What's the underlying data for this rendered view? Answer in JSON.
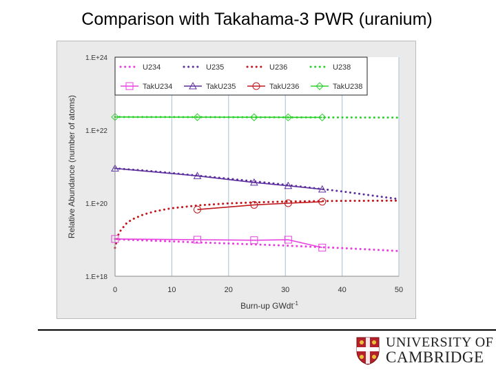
{
  "slide": {
    "title": "Comparison with Takahama-3 PWR (uranium)"
  },
  "logo": {
    "line1": "UNIVERSITY OF",
    "line2": "CAMBRIDGE",
    "shield_color": "#b5212a"
  },
  "chart_data": {
    "type": "line",
    "xlabel": "Burn-up GWdt",
    "xlabel_sup": "-1",
    "ylabel": "Relative Abundance   (number of atoms)",
    "xlim": [
      0,
      50
    ],
    "xticks": [
      0,
      10,
      20,
      30,
      40,
      50
    ],
    "y_scale": "log",
    "ylim": [
      1e+18,
      1e+24
    ],
    "yticks": [
      {
        "value": 1e+18,
        "label": "1.E+18"
      },
      {
        "value": 1e+20,
        "label": "1.E+20"
      },
      {
        "value": 1e+22,
        "label": "1.E+22"
      },
      {
        "value": 1e+24,
        "label": "1.E+24"
      }
    ],
    "grid": "vertical",
    "legend_position": "top-right",
    "series": [
      {
        "name": "U234",
        "style": "dotted",
        "color": "#e83ee0",
        "x": [
          0,
          2,
          5,
          10,
          15,
          20,
          25,
          30,
          35,
          40,
          45,
          50
        ],
        "y": [
          1.05e+19,
          1e+19,
          9.6e+18,
          9e+18,
          8.4e+18,
          7.9e+18,
          7.4e+18,
          6.9e+18,
          6.4e+18,
          5.9e+18,
          5.4e+18,
          4.9e+18
        ]
      },
      {
        "name": "U235",
        "style": "dotted",
        "color": "#5b2d9e",
        "x": [
          0,
          5,
          10,
          15,
          20,
          25,
          30,
          35,
          40,
          45,
          50
        ],
        "y": [
          9e+20,
          7.9e+20,
          6.7e+20,
          5.6e+20,
          4.7e+20,
          3.9e+20,
          3.2e+20,
          2.6e+20,
          2.1e+20,
          1.65e+20,
          1.3e+20
        ]
      },
      {
        "name": "U236",
        "style": "dotted",
        "color": "#c0161b",
        "x": [
          0,
          0.5,
          1,
          2,
          3,
          5,
          7,
          10,
          15,
          20,
          25,
          30,
          35,
          40,
          45,
          50
        ],
        "y": [
          6e+18,
          1.3e+19,
          1.8e+19,
          2.8e+19,
          3.6e+19,
          4.9e+19,
          6e+19,
          7.3e+19,
          8.8e+19,
          9.9e+19,
          1.06e+20,
          1.11e+20,
          1.14e+20,
          1.16e+20,
          1.17e+20,
          1.18e+20
        ]
      },
      {
        "name": "U238",
        "style": "dotted",
        "color": "#2bd12b",
        "x": [
          0,
          10,
          20,
          30,
          40,
          50
        ],
        "y": [
          2.3e+22,
          2.29e+22,
          2.27e+22,
          2.25e+22,
          2.23e+22,
          2.21e+22
        ]
      },
      {
        "name": "TakU234",
        "style": "solid",
        "marker": "square",
        "color": "#e83ee0",
        "x": [
          0,
          14.5,
          24.5,
          30.5,
          36.5
        ],
        "y": [
          1.05e+19,
          1e+19,
          9.7e+18,
          1e+19,
          6.1e+18
        ]
      },
      {
        "name": "TakU235",
        "style": "solid",
        "marker": "triangle",
        "color": "#5b2d9e",
        "x": [
          0,
          14.5,
          24.5,
          30.5,
          36.5
        ],
        "y": [
          9e+20,
          5.6e+20,
          3.7e+20,
          3e+20,
          2.4e+20
        ]
      },
      {
        "name": "TakU236",
        "style": "solid",
        "marker": "circle",
        "color": "#c0161b",
        "x": [
          14.5,
          24.5,
          30.5,
          36.5
        ],
        "y": [
          6.7e+19,
          9e+19,
          1e+20,
          1.1e+20
        ]
      },
      {
        "name": "TakU238",
        "style": "solid",
        "marker": "diamond",
        "color": "#2bd12b",
        "x": [
          0,
          14.5,
          24.5,
          30.5,
          36.5
        ],
        "y": [
          2.3e+22,
          2.27e+22,
          2.26e+22,
          2.25e+22,
          2.24e+22
        ]
      }
    ]
  }
}
